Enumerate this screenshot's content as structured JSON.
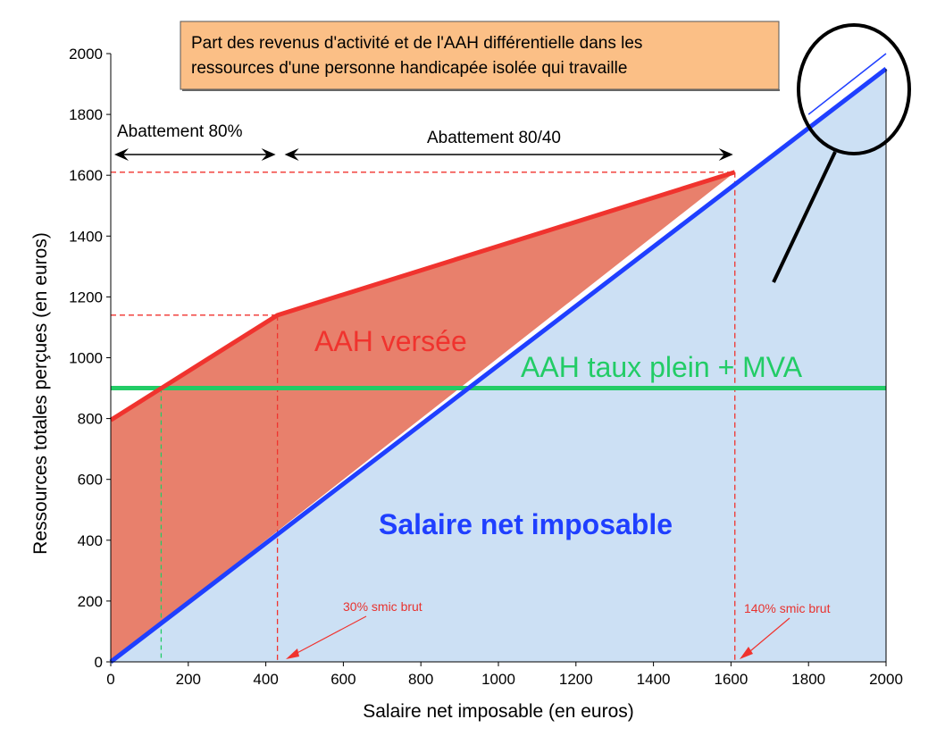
{
  "chart_data": {
    "type": "area",
    "title_lines": [
      "Part des revenus d'activité et de l'AAH différentielle dans les",
      "ressources d'une personne handicapée isolée qui travaille"
    ],
    "xlabel": "Salaire net imposable (en euros)",
    "ylabel": "Ressources totales perçues (en euros)",
    "xlim": [
      0,
      2000
    ],
    "ylim": [
      0,
      2000
    ],
    "xticks": [
      0,
      200,
      400,
      600,
      800,
      1000,
      1200,
      1400,
      1600,
      1800,
      2000
    ],
    "yticks": [
      0,
      200,
      400,
      600,
      800,
      1000,
      1200,
      1400,
      1600,
      1800,
      2000
    ],
    "series": [
      {
        "name": "AAH versée",
        "color": "#f0332e",
        "fill": "#e8806c",
        "x": [
          0,
          430,
          1610
        ],
        "y": [
          795,
          1140,
          1610
        ]
      },
      {
        "name": "Salaire net imposable",
        "color": "#1f3fff",
        "fill": "#cce0f4",
        "x": [
          0,
          2000
        ],
        "y": [
          0,
          1950
        ]
      },
      {
        "name": "AAH taux plein + MVA",
        "color": "#22cc66",
        "x": [
          0,
          2000
        ],
        "y": [
          900,
          900
        ]
      }
    ],
    "thin_line": {
      "color": "#1f3fff",
      "x": [
        1800,
        2000
      ],
      "y": [
        1800,
        2000
      ]
    },
    "reference_lines": {
      "vertical_x": [
        130,
        430,
        1610
      ],
      "horizontal_y": [
        1140,
        1610
      ]
    },
    "annotations": {
      "abattement_80": "Abattement 80%",
      "abattement_80_40": "Abattement 80/40",
      "aah_versee": "AAH versée",
      "aah_plein": "AAH taux plein + MVA",
      "salaire": "Salaire net imposable",
      "smic30": "30% smic brut",
      "smic140": "140% smic brut"
    },
    "colors": {
      "title_box": "#fbbf86",
      "aah_label": "#f0332e",
      "green_label": "#22cc66",
      "blue_label": "#1f3fff"
    }
  }
}
